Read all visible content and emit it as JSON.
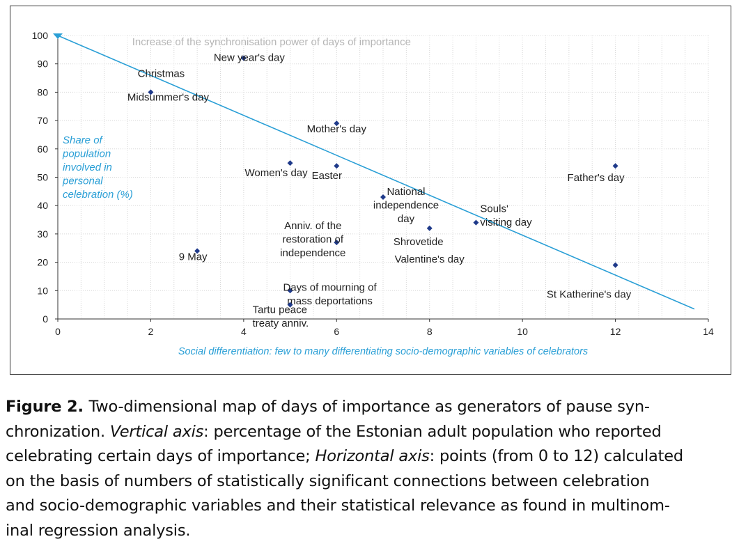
{
  "chart_data": {
    "type": "scatter",
    "title": "Increase of the synchronisation power of days of importance",
    "xlabel": "Social differentiation: few to many differentiating socio-demographic variables of celebrators",
    "ylabel": [
      "Share of",
      "population",
      "involved in",
      "personal",
      "celebration (%)"
    ],
    "xlim": [
      0,
      14
    ],
    "ylim": [
      0,
      100
    ],
    "xticks": [
      "0",
      "2",
      "4",
      "6",
      "8",
      "10",
      "12",
      "14"
    ],
    "yticks": [
      "0",
      "10",
      "20",
      "30",
      "40",
      "50",
      "60",
      "70",
      "80",
      "90",
      "100"
    ],
    "grid": true,
    "trendline": {
      "x": [
        0,
        13.7
      ],
      "y": [
        100,
        3.5
      ]
    },
    "points": [
      {
        "name": "New year's day",
        "x": 4,
        "y": 92,
        "lines": [
          "New year's day"
        ]
      },
      {
        "name": "Christmas",
        "x": 2,
        "y": 80,
        "lines": [
          "Christmas"
        ]
      },
      {
        "name": "Midsummer's day",
        "x": 2,
        "y": 80,
        "lines": [
          "Midsummer's day"
        ]
      },
      {
        "name": "Mother's day",
        "x": 6,
        "y": 69,
        "lines": [
          "Mother's day"
        ]
      },
      {
        "name": "Women's day",
        "x": 5,
        "y": 55,
        "lines": [
          "Women's day"
        ]
      },
      {
        "name": "Easter",
        "x": 6,
        "y": 54,
        "lines": [
          "Easter"
        ]
      },
      {
        "name": "Father's day",
        "x": 12,
        "y": 54,
        "lines": [
          "Father's day"
        ]
      },
      {
        "name": "National independence day",
        "x": 7,
        "y": 43,
        "lines": [
          "National",
          "independence",
          "day"
        ]
      },
      {
        "name": "Souls' visiting day",
        "x": 9,
        "y": 34,
        "lines": [
          "Souls'",
          "visiting day"
        ]
      },
      {
        "name": "Shrovetide",
        "x": 8,
        "y": 32,
        "lines": [
          "Shrovetide"
        ]
      },
      {
        "name": "Valentine's day",
        "x": 8,
        "y": 31,
        "lines": [
          "Valentine's day"
        ]
      },
      {
        "name": "Anniv. of the restoration of independence",
        "x": 6,
        "y": 27,
        "lines": [
          "Anniv. of the",
          "restoration of",
          "independence"
        ]
      },
      {
        "name": "9 May",
        "x": 3,
        "y": 24,
        "lines": [
          "9 May"
        ]
      },
      {
        "name": "St Katherine's day",
        "x": 12,
        "y": 19,
        "lines": [
          "St Katherine's day"
        ]
      },
      {
        "name": "Days of mourning of mass deportations",
        "x": 5,
        "y": 10,
        "lines": [
          "Days of mourning of",
          "mass deportations"
        ]
      },
      {
        "name": "Tartu peace treaty anniv.",
        "x": 5,
        "y": 5,
        "lines": [
          "Tartu peace",
          "treaty anniv."
        ]
      }
    ]
  },
  "caption": {
    "label": "Figure 2.",
    "lines": [
      [
        {
          "t": "Two-dimensional map of days of importance as generators of pause syn-"
        }
      ],
      [
        {
          "t": "chronization. "
        },
        {
          "t": "Vertical axis",
          "i": true
        },
        {
          "t": ": percentage of the Estonian adult population who reported"
        }
      ],
      [
        {
          "t": "celebrating certain days of importance; "
        },
        {
          "t": "Horizontal axis",
          "i": true
        },
        {
          "t": ": points (from 0 to 12) calculated"
        }
      ],
      [
        {
          "t": "on the basis of numbers of statistically significant connections between celebration"
        }
      ],
      [
        {
          "t": "and socio-demographic variables and their statistical relevance as found in multinom-"
        }
      ],
      [
        {
          "t": "inal regression analysis."
        }
      ]
    ]
  },
  "colors": {
    "accent": "#2a9fd6",
    "points": "#1f3a8a",
    "title_gray": "#b5b5b5"
  }
}
